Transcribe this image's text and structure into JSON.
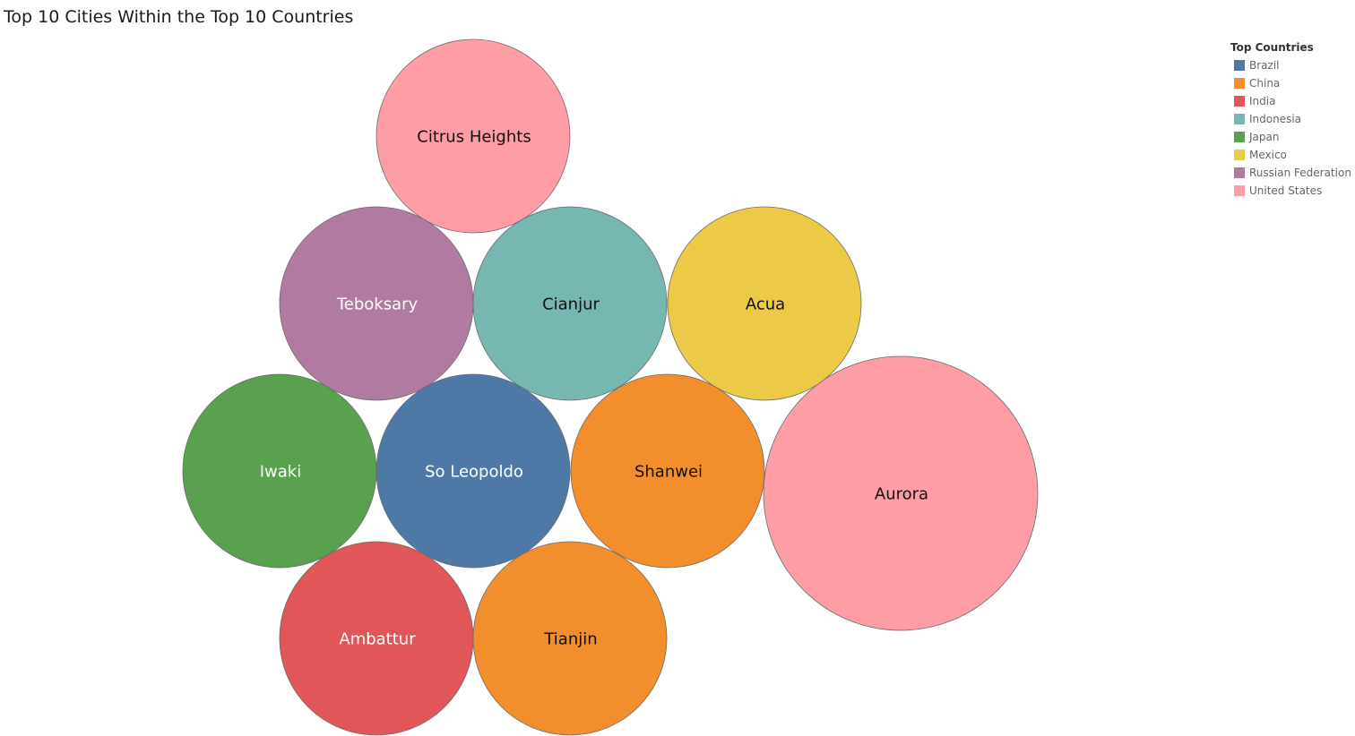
{
  "chart_data": {
    "type": "packed-bubble",
    "title": "Top 10 Cities Within the Top 10 Countries",
    "legend": {
      "title": "Top Countries",
      "placement": "top-right",
      "items": [
        {
          "name": "Brazil",
          "color": "#4e79a7"
        },
        {
          "name": "China",
          "color": "#f28e2b"
        },
        {
          "name": "India",
          "color": "#e15759"
        },
        {
          "name": "Indonesia",
          "color": "#76b7b2"
        },
        {
          "name": "Japan",
          "color": "#59a14f"
        },
        {
          "name": "Mexico",
          "color": "#edc948"
        },
        {
          "name": "Russian Federation",
          "color": "#b07aa1"
        },
        {
          "name": "United States",
          "color": "#ff9da7"
        }
      ]
    },
    "bubbles": [
      {
        "city": "Aurora",
        "country": "United States",
        "value": 2
      },
      {
        "city": "Citrus Heights",
        "country": "United States",
        "value": 1
      },
      {
        "city": "Teboksary",
        "country": "Russian Federation",
        "value": 1
      },
      {
        "city": "Cianjur",
        "country": "Indonesia",
        "value": 1
      },
      {
        "city": "Acua",
        "country": "Mexico",
        "value": 1
      },
      {
        "city": "Iwaki",
        "country": "Japan",
        "value": 1
      },
      {
        "city": "So Leopoldo",
        "country": "Brazil",
        "value": 1
      },
      {
        "city": "Shanwei",
        "country": "China",
        "value": 1
      },
      {
        "city": "Ambattur",
        "country": "India",
        "value": 1
      },
      {
        "city": "Tianjin",
        "country": "China",
        "value": 1
      }
    ],
    "label_color_dark": [
      "Citrus Heights",
      "Cianjur",
      "Acua",
      "Shanwei",
      "Tianjin",
      "Aurora"
    ]
  }
}
